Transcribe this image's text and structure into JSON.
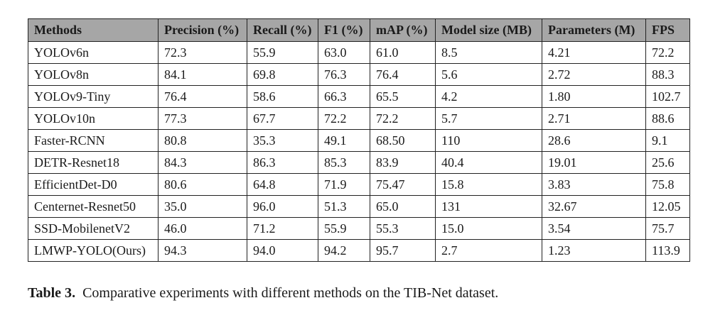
{
  "table": {
    "headers": [
      "Methods",
      "Precision (%)",
      "Recall (%)",
      "F1 (%)",
      "mAP (%)",
      "Model size (MB)",
      "Parameters (M)",
      "FPS"
    ],
    "rows": [
      [
        "YOLOv6n",
        "72.3",
        "55.9",
        "63.0",
        "61.0",
        "8.5",
        "4.21",
        "72.2"
      ],
      [
        "YOLOv8n",
        "84.1",
        "69.8",
        "76.3",
        "76.4",
        "5.6",
        "2.72",
        "88.3"
      ],
      [
        "YOLOv9-Tiny",
        "76.4",
        "58.6",
        "66.3",
        "65.5",
        "4.2",
        "1.80",
        "102.7"
      ],
      [
        "YOLOv10n",
        "77.3",
        "67.7",
        "72.2",
        "72.2",
        "5.7",
        "2.71",
        "88.6"
      ],
      [
        "Faster-RCNN",
        "80.8",
        "35.3",
        "49.1",
        "68.50",
        "110",
        "28.6",
        "9.1"
      ],
      [
        "DETR-Resnet18",
        "84.3",
        "86.3",
        "85.3",
        "83.9",
        "40.4",
        "19.01",
        "25.6"
      ],
      [
        "EfficientDet-D0",
        "80.6",
        "64.8",
        "71.9",
        "75.47",
        "15.8",
        "3.83",
        "75.8"
      ],
      [
        "Centernet-Resnet50",
        "35.0",
        "96.0",
        "51.3",
        "65.0",
        "131",
        "32.67",
        "12.05"
      ],
      [
        "SSD-MobilenetV2",
        "46.0",
        "71.2",
        "55.9",
        "55.3",
        "15.0",
        "3.54",
        "75.7"
      ],
      [
        "LMWP-YOLO(Ours)",
        "94.3",
        "94.0",
        "94.2",
        "95.7",
        "2.7",
        "1.23",
        "113.9"
      ]
    ]
  },
  "caption": {
    "label": "Table 3",
    "separator": ".",
    "text": "Comparative experiments with different methods on the TIB-Net dataset."
  },
  "colors": {
    "header_background": "#a6a6a6",
    "border": "#222222",
    "text": "#1a1a1a"
  }
}
